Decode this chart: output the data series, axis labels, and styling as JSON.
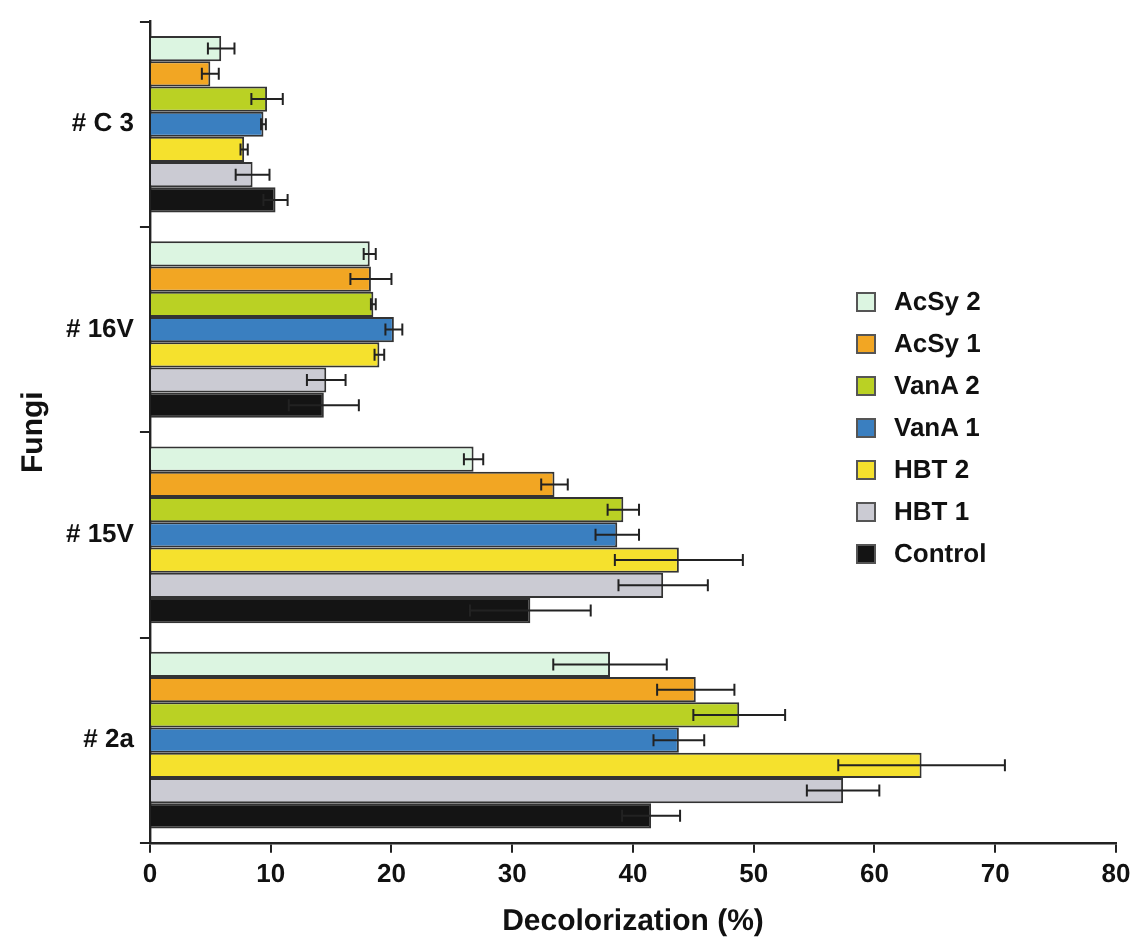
{
  "chart_data": {
    "type": "bar",
    "orientation": "horizontal",
    "xlabel": "Decolorization (%)",
    "ylabel": "Fungi",
    "categories": [
      "# C 3",
      "# 16V",
      "# 15V",
      "# 2a"
    ],
    "xlim": [
      0,
      80
    ],
    "xticks": [
      0,
      10,
      20,
      30,
      40,
      50,
      60,
      70,
      80
    ],
    "grid": false,
    "legend": "right",
    "series": [
      {
        "name": "AcSy 2",
        "color": "#dcf5e1",
        "values": [
          5.9,
          18.2,
          26.8,
          38.1
        ],
        "errors": [
          1.1,
          0.5,
          0.8,
          4.7
        ]
      },
      {
        "name": "AcSy 1",
        "color": "#f2a623",
        "values": [
          5.0,
          18.3,
          33.5,
          45.2
        ],
        "errors": [
          0.7,
          1.7,
          1.1,
          3.2
        ]
      },
      {
        "name": "VanA 2",
        "color": "#bad124",
        "values": [
          9.7,
          18.5,
          39.2,
          48.8
        ],
        "errors": [
          1.3,
          0.2,
          1.3,
          3.8
        ]
      },
      {
        "name": "VanA 1",
        "color": "#3a7fc0",
        "values": [
          9.4,
          20.2,
          38.7,
          43.8
        ],
        "errors": [
          0.2,
          0.7,
          1.8,
          2.1
        ]
      },
      {
        "name": "HBT 2",
        "color": "#f5e12d",
        "values": [
          7.8,
          19.0,
          43.8,
          63.9
        ],
        "errors": [
          0.3,
          0.4,
          5.3,
          6.9
        ]
      },
      {
        "name": "HBT 1",
        "color": "#cbcbd3",
        "values": [
          8.5,
          14.6,
          42.5,
          57.4
        ],
        "errors": [
          1.4,
          1.6,
          3.7,
          3.0
        ]
      },
      {
        "name": "Control",
        "color": "#141414",
        "values": [
          10.4,
          14.4,
          31.5,
          41.5
        ],
        "errors": [
          1.0,
          2.9,
          5.0,
          2.4
        ]
      }
    ]
  }
}
